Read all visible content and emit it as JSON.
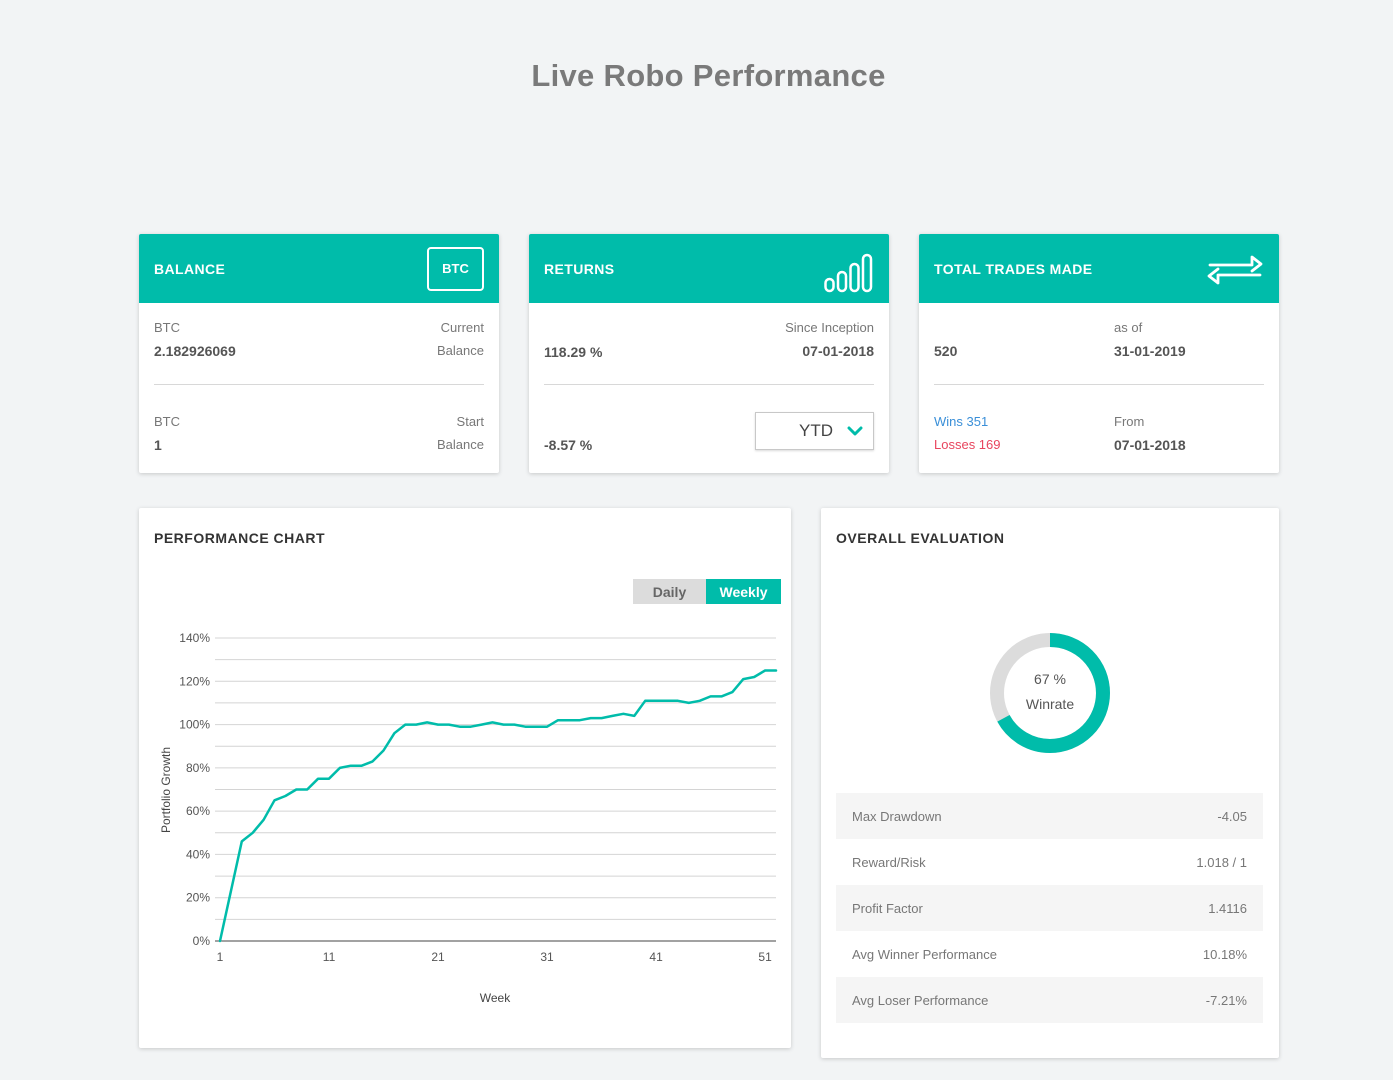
{
  "page": {
    "title": "Live Robo Performance"
  },
  "balance_card": {
    "label": "BALANCE",
    "badge": "BTC",
    "current": {
      "unit": "BTC",
      "value": "2.182926069",
      "caption_top": "Current",
      "caption_bottom": "Balance"
    },
    "start": {
      "unit": "BTC",
      "value": "1",
      "caption_top": "Start",
      "caption_bottom": "Balance"
    }
  },
  "returns_card": {
    "label": "RETURNS",
    "icon": "bar-signal-icon",
    "since_label": "Since Inception",
    "since_date": "07-01-2018",
    "total_return": "118.29 %",
    "period_return": "-8.57 %",
    "period_select": "YTD"
  },
  "trades_card": {
    "label": "TOTAL TRADES MADE",
    "icon": "swap-arrows-icon",
    "count": "520",
    "as_of_label": "as of",
    "as_of_date": "31-01-2019",
    "wins": "Wins 351",
    "losses": "Losses 169",
    "from_label": "From",
    "from_date": "07-01-2018",
    "colors": {
      "wins": "#3a8fd8",
      "losses": "#e8455e"
    }
  },
  "performance": {
    "title": "PERFORMANCE CHART",
    "toggle": {
      "daily": "Daily",
      "weekly": "Weekly",
      "selected": "weekly"
    }
  },
  "chart_data": {
    "type": "line",
    "xlabel": "Week",
    "ylabel": "Portfolio Growth",
    "ylim": [
      0,
      140
    ],
    "xlim": [
      1,
      52
    ],
    "y_ticks": [
      "0%",
      "20%",
      "40%",
      "60%",
      "80%",
      "100%",
      "120%",
      "140%"
    ],
    "y_tick_values": [
      0,
      20,
      40,
      60,
      80,
      100,
      120,
      140
    ],
    "x_ticks": [
      "1",
      "11",
      "21",
      "31",
      "41",
      "51"
    ],
    "x_tick_values": [
      1,
      11,
      21,
      31,
      41,
      51
    ],
    "grid": true,
    "series": [
      {
        "color": "#00bcaa",
        "x": [
          1,
          2,
          3,
          4,
          5,
          6,
          7,
          8,
          9,
          10,
          11,
          12,
          13,
          14,
          15,
          16,
          17,
          18,
          19,
          20,
          21,
          22,
          23,
          24,
          25,
          26,
          27,
          28,
          29,
          30,
          31,
          32,
          33,
          34,
          35,
          36,
          37,
          38,
          39,
          40,
          41,
          42,
          43,
          44,
          45,
          46,
          47,
          48,
          49,
          50,
          51,
          52
        ],
        "y": [
          0,
          23,
          46,
          50,
          56,
          65,
          67,
          70,
          70,
          75,
          75,
          80,
          81,
          81,
          83,
          88,
          96,
          100,
          100,
          101,
          100,
          100,
          99,
          99,
          100,
          101,
          100,
          100,
          99,
          99,
          99,
          102,
          102,
          102,
          103,
          103,
          104,
          105,
          104,
          111,
          111,
          111,
          111,
          110,
          111,
          113,
          113,
          115,
          121,
          122,
          125,
          125
        ]
      }
    ]
  },
  "evaluation": {
    "title": "OVERALL EVALUATION",
    "winrate_pct": 67,
    "winrate_value": "67 %",
    "winrate_label": "Winrate",
    "colors": {
      "ring": "#00bcaa",
      "track": "#dcdcdc"
    },
    "stats": [
      {
        "label": "Max Drawdown",
        "value": "-4.05"
      },
      {
        "label": "Reward/Risk",
        "value": "1.018 / 1"
      },
      {
        "label": "Profit Factor",
        "value": "1.4116"
      },
      {
        "label": "Avg Winner Performance",
        "value": "10.18%"
      },
      {
        "label": "Avg Loser Performance",
        "value": "-7.21%"
      }
    ]
  }
}
